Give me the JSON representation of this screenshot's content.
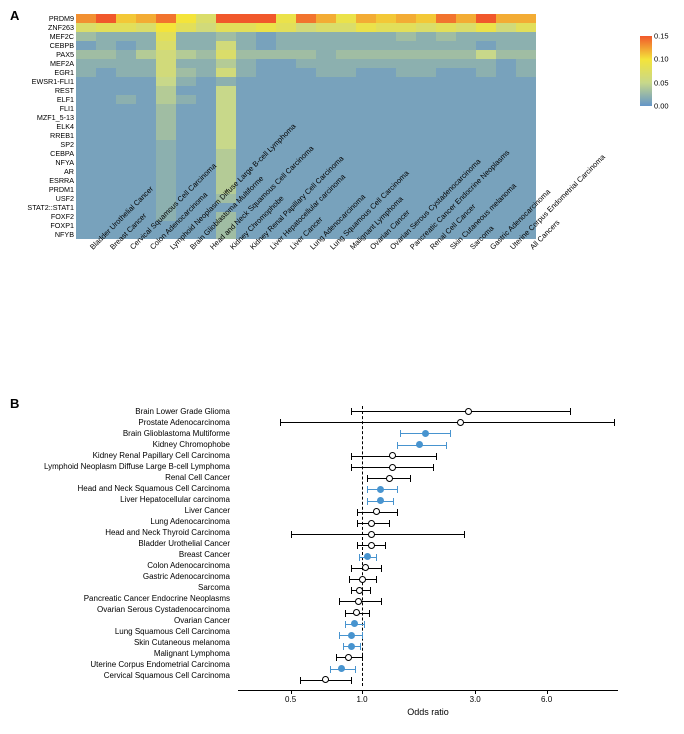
{
  "panel_a": {
    "label": "A",
    "type": "heatmap",
    "background_color": "#ffffff",
    "cell_size": {
      "w": 20,
      "h": 9
    },
    "color_scale": {
      "stops": [
        {
          "v": 0.0,
          "c": "#6495c8"
        },
        {
          "v": 0.05,
          "c": "#c8d88a"
        },
        {
          "v": 0.1,
          "c": "#f4e43a"
        },
        {
          "v": 0.15,
          "c": "#f1582b"
        }
      ],
      "ticks": [
        0.0,
        0.05,
        0.1,
        0.15
      ]
    },
    "row_labels": [
      "PRDM9",
      "ZNF263",
      "MEF2C",
      "CEBPB",
      "PAX5",
      "MEF2A",
      "EGR1",
      "EWSR1-FLI1",
      "REST",
      "ELF1",
      "FLI1",
      "MZF1_5-13",
      "ELK4",
      "RREB1",
      "SP2",
      "CEBPA",
      "NFYA",
      "AR",
      "ESRRA",
      "PRDM1",
      "USF2",
      "STAT2::STAT1",
      "FOXF2",
      "FOXP1",
      "NFYB"
    ],
    "col_labels": [
      "Bladder Urothelial Cancer",
      "Breast Cancer",
      "Cervical Squamous Cell Carcinoma",
      "Colon Adenocarcinoma",
      "Lymphoid Neoplasm Diffuse Large B-cell Lymphoma",
      "Brain Glioblastoma Multiforme",
      "Head and Neck Squamous Cell Carcinoma",
      "Kidney Chromophobe",
      "Kidney Renal Papillary Cell Carcinoma",
      "Liver Hepatocellular carcinoma",
      "Liver Cancer",
      "Lung Adenocarcinoma",
      "Lung Squamous Cell Carcinoma",
      "Malignant Lymphoma",
      "Ovarian Cancer",
      "Ovarian Serous Cystadenocarcinoma",
      "Pancreatic Cancer Endocrine Neoplasms",
      "Renal Cell Cancer",
      "Skin Cutaneous melanoma",
      "Sarcoma",
      "Gastric Adenocarcinoma",
      "Uterine Corpus Endometrial Carcinoma",
      "All Cancers"
    ],
    "values": [
      [
        0.13,
        0.15,
        0.11,
        0.12,
        0.14,
        0.1,
        0.07,
        0.16,
        0.15,
        0.15,
        0.09,
        0.14,
        0.12,
        0.09,
        0.12,
        0.11,
        0.12,
        0.11,
        0.14,
        0.12,
        0.16,
        0.12,
        0.12
      ],
      [
        0.07,
        0.08,
        0.08,
        0.07,
        0.1,
        0.08,
        0.06,
        0.08,
        0.08,
        0.09,
        0.08,
        0.06,
        0.07,
        0.07,
        0.09,
        0.08,
        0.08,
        0.07,
        0.08,
        0.07,
        0.09,
        0.06,
        0.08
      ],
      [
        0.03,
        0.02,
        0.02,
        0.02,
        0.08,
        0.02,
        0.02,
        0.03,
        0.02,
        0.01,
        0.02,
        0.02,
        0.02,
        0.02,
        0.02,
        0.02,
        0.03,
        0.02,
        0.03,
        0.02,
        0.02,
        0.02,
        0.02
      ],
      [
        0.01,
        0.02,
        0.01,
        0.02,
        0.07,
        0.02,
        0.02,
        0.06,
        0.02,
        0.01,
        0.02,
        0.02,
        0.02,
        0.02,
        0.02,
        0.02,
        0.02,
        0.02,
        0.02,
        0.02,
        0.01,
        0.02,
        0.02
      ],
      [
        0.03,
        0.03,
        0.02,
        0.04,
        0.06,
        0.04,
        0.03,
        0.07,
        0.03,
        0.03,
        0.03,
        0.03,
        0.02,
        0.03,
        0.03,
        0.03,
        0.03,
        0.03,
        0.03,
        0.03,
        0.05,
        0.03,
        0.03
      ],
      [
        0.02,
        0.02,
        0.02,
        0.02,
        0.06,
        0.02,
        0.02,
        0.04,
        0.02,
        0.01,
        0.01,
        0.02,
        0.02,
        0.02,
        0.02,
        0.02,
        0.02,
        0.02,
        0.02,
        0.02,
        0.02,
        0.01,
        0.02
      ],
      [
        0.02,
        0.01,
        0.02,
        0.02,
        0.06,
        0.03,
        0.02,
        0.06,
        0.02,
        0.01,
        0.01,
        0.01,
        0.02,
        0.02,
        0.01,
        0.01,
        0.02,
        0.02,
        0.01,
        0.01,
        0.02,
        0.01,
        0.02
      ],
      [
        0.01,
        0.01,
        0.01,
        0.01,
        0.05,
        0.02,
        0.01,
        0.02,
        0.01,
        0.01,
        0.01,
        0.01,
        0.01,
        0.01,
        0.01,
        0.01,
        0.01,
        0.01,
        0.01,
        0.01,
        0.01,
        0.01,
        0.01
      ],
      [
        0.01,
        0.01,
        0.01,
        0.01,
        0.04,
        0.01,
        0.01,
        0.05,
        0.01,
        0.01,
        0.01,
        0.01,
        0.01,
        0.01,
        0.01,
        0.01,
        0.01,
        0.01,
        0.01,
        0.01,
        0.01,
        0.01,
        0.01
      ],
      [
        0.01,
        0.01,
        0.02,
        0.01,
        0.04,
        0.02,
        0.01,
        0.05,
        0.01,
        0.01,
        0.01,
        0.01,
        0.01,
        0.01,
        0.01,
        0.01,
        0.01,
        0.01,
        0.01,
        0.01,
        0.01,
        0.01,
        0.01
      ],
      [
        0.01,
        0.01,
        0.01,
        0.01,
        0.03,
        0.01,
        0.01,
        0.05,
        0.01,
        0.01,
        0.01,
        0.01,
        0.01,
        0.01,
        0.01,
        0.01,
        0.01,
        0.01,
        0.01,
        0.01,
        0.01,
        0.01,
        0.01
      ],
      [
        0.01,
        0.01,
        0.01,
        0.01,
        0.03,
        0.01,
        0.01,
        0.05,
        0.01,
        0.01,
        0.01,
        0.01,
        0.01,
        0.01,
        0.01,
        0.01,
        0.01,
        0.01,
        0.01,
        0.01,
        0.01,
        0.01,
        0.01
      ],
      [
        0.01,
        0.01,
        0.01,
        0.01,
        0.03,
        0.01,
        0.01,
        0.05,
        0.01,
        0.01,
        0.01,
        0.01,
        0.01,
        0.01,
        0.01,
        0.01,
        0.01,
        0.01,
        0.01,
        0.01,
        0.01,
        0.01,
        0.01
      ],
      [
        0.01,
        0.01,
        0.01,
        0.01,
        0.03,
        0.01,
        0.01,
        0.05,
        0.01,
        0.01,
        0.01,
        0.01,
        0.01,
        0.01,
        0.01,
        0.01,
        0.01,
        0.01,
        0.01,
        0.01,
        0.01,
        0.01,
        0.01
      ],
      [
        0.01,
        0.01,
        0.01,
        0.01,
        0.02,
        0.01,
        0.01,
        0.05,
        0.01,
        0.01,
        0.01,
        0.01,
        0.01,
        0.01,
        0.01,
        0.01,
        0.01,
        0.01,
        0.01,
        0.01,
        0.01,
        0.01,
        0.01
      ],
      [
        0.01,
        0.01,
        0.01,
        0.01,
        0.02,
        0.01,
        0.01,
        0.04,
        0.01,
        0.01,
        0.01,
        0.01,
        0.01,
        0.01,
        0.01,
        0.01,
        0.01,
        0.01,
        0.01,
        0.01,
        0.01,
        0.01,
        0.01
      ],
      [
        0.01,
        0.01,
        0.01,
        0.01,
        0.02,
        0.01,
        0.01,
        0.04,
        0.01,
        0.01,
        0.01,
        0.01,
        0.01,
        0.01,
        0.01,
        0.01,
        0.01,
        0.01,
        0.01,
        0.01,
        0.01,
        0.01,
        0.01
      ],
      [
        0.01,
        0.01,
        0.01,
        0.01,
        0.02,
        0.01,
        0.01,
        0.04,
        0.01,
        0.01,
        0.01,
        0.01,
        0.01,
        0.01,
        0.01,
        0.01,
        0.01,
        0.01,
        0.01,
        0.01,
        0.01,
        0.01,
        0.01
      ],
      [
        0.01,
        0.01,
        0.01,
        0.01,
        0.02,
        0.01,
        0.01,
        0.04,
        0.01,
        0.01,
        0.01,
        0.01,
        0.01,
        0.01,
        0.01,
        0.01,
        0.01,
        0.01,
        0.01,
        0.01,
        0.01,
        0.01,
        0.01
      ],
      [
        0.01,
        0.01,
        0.01,
        0.01,
        0.02,
        0.01,
        0.01,
        0.04,
        0.01,
        0.01,
        0.01,
        0.01,
        0.01,
        0.01,
        0.01,
        0.01,
        0.01,
        0.01,
        0.01,
        0.01,
        0.01,
        0.01,
        0.01
      ],
      [
        0.01,
        0.01,
        0.01,
        0.01,
        0.02,
        0.01,
        0.01,
        0.03,
        0.01,
        0.01,
        0.01,
        0.01,
        0.01,
        0.01,
        0.01,
        0.01,
        0.01,
        0.01,
        0.01,
        0.01,
        0.01,
        0.01,
        0.01
      ],
      [
        0.01,
        0.01,
        0.01,
        0.01,
        0.02,
        0.01,
        0.01,
        0.01,
        0.01,
        0.01,
        0.01,
        0.01,
        0.01,
        0.01,
        0.01,
        0.01,
        0.01,
        0.01,
        0.01,
        0.01,
        0.01,
        0.01,
        0.01
      ],
      [
        0.01,
        0.01,
        0.01,
        0.01,
        0.02,
        0.01,
        0.01,
        0.03,
        0.01,
        0.01,
        0.01,
        0.01,
        0.01,
        0.01,
        0.01,
        0.01,
        0.01,
        0.01,
        0.01,
        0.01,
        0.01,
        0.01,
        0.01
      ],
      [
        0.01,
        0.01,
        0.01,
        0.01,
        0.01,
        0.01,
        0.01,
        0.03,
        0.01,
        0.01,
        0.01,
        0.01,
        0.01,
        0.01,
        0.01,
        0.01,
        0.01,
        0.01,
        0.01,
        0.01,
        0.01,
        0.01,
        0.01
      ],
      [
        0.01,
        0.01,
        0.01,
        0.01,
        0.01,
        0.01,
        0.01,
        0.03,
        0.01,
        0.01,
        0.01,
        0.01,
        0.01,
        0.01,
        0.01,
        0.01,
        0.01,
        0.01,
        0.01,
        0.01,
        0.01,
        0.01,
        0.01
      ]
    ]
  },
  "panel_b": {
    "label": "B",
    "type": "forest",
    "x_scale": "log",
    "x_axis_title": "Odds ratio",
    "x_ticks": [
      0.5,
      1.0,
      3.0,
      6.0
    ],
    "x_range": [
      0.3,
      12.0
    ],
    "ref_line": 1.0,
    "sig_color": "#4894cf",
    "ns_color": "#000000",
    "rows": [
      {
        "label": "Brain Lower Grade Glioma",
        "or": 2.8,
        "lo": 0.9,
        "hi": 7.5,
        "sig": false
      },
      {
        "label": "Prostate Adenocarcinoma",
        "or": 2.6,
        "lo": 0.45,
        "hi": 11.5,
        "sig": false
      },
      {
        "label": "Brain Glioblastoma Multiforme",
        "or": 1.85,
        "lo": 1.45,
        "hi": 2.35,
        "sig": true
      },
      {
        "label": "Kidney Chromophobe",
        "or": 1.75,
        "lo": 1.4,
        "hi": 2.25,
        "sig": true
      },
      {
        "label": "Kidney Renal Papillary Cell Carcinoma",
        "or": 1.35,
        "lo": 0.9,
        "hi": 2.05,
        "sig": false
      },
      {
        "label": "Lymphoid Neoplasm Diffuse Large B-cell Lymphoma",
        "or": 1.35,
        "lo": 0.9,
        "hi": 2.0,
        "sig": false
      },
      {
        "label": "Renal Cell Cancer",
        "or": 1.3,
        "lo": 1.05,
        "hi": 1.6,
        "sig": false
      },
      {
        "label": "Head and Neck Squamous Cell Carcinoma",
        "or": 1.2,
        "lo": 1.05,
        "hi": 1.4,
        "sig": true
      },
      {
        "label": "Liver Hepatocellular carcinoma",
        "or": 1.2,
        "lo": 1.05,
        "hi": 1.35,
        "sig": true
      },
      {
        "label": "Liver Cancer",
        "or": 1.15,
        "lo": 0.95,
        "hi": 1.4,
        "sig": false
      },
      {
        "label": "Lung Adenocarcinoma",
        "or": 1.1,
        "lo": 0.95,
        "hi": 1.3,
        "sig": false
      },
      {
        "label": "Head and Neck Thyroid Carcinoma",
        "or": 1.1,
        "lo": 0.5,
        "hi": 2.7,
        "sig": false
      },
      {
        "label": "Bladder Urothelial Cancer",
        "or": 1.1,
        "lo": 0.95,
        "hi": 1.25,
        "sig": false
      },
      {
        "label": "Breast Cancer",
        "or": 1.05,
        "lo": 0.97,
        "hi": 1.14,
        "sig": true
      },
      {
        "label": "Colon Adenocarcinoma",
        "or": 1.03,
        "lo": 0.9,
        "hi": 1.2,
        "sig": false
      },
      {
        "label": "Gastric Adenocarcinoma",
        "or": 1.0,
        "lo": 0.88,
        "hi": 1.15,
        "sig": false
      },
      {
        "label": "Sarcoma",
        "or": 0.98,
        "lo": 0.9,
        "hi": 1.08,
        "sig": false
      },
      {
        "label": "Pancreatic Cancer Endocrine Neoplasms",
        "or": 0.97,
        "lo": 0.8,
        "hi": 1.2,
        "sig": false
      },
      {
        "label": "Ovarian Serous Cystadenocarcinoma",
        "or": 0.95,
        "lo": 0.85,
        "hi": 1.07,
        "sig": false
      },
      {
        "label": "Ovarian Cancer",
        "or": 0.93,
        "lo": 0.85,
        "hi": 1.02,
        "sig": true
      },
      {
        "label": "Lung Squamous Cell Carcinoma",
        "or": 0.9,
        "lo": 0.8,
        "hi": 1.0,
        "sig": true
      },
      {
        "label": "Skin Cutaneous melanoma",
        "or": 0.9,
        "lo": 0.83,
        "hi": 0.98,
        "sig": true
      },
      {
        "label": "Malignant Lymphoma",
        "or": 0.88,
        "lo": 0.78,
        "hi": 1.0,
        "sig": false
      },
      {
        "label": "Uterine Corpus Endometrial Carcinoma",
        "or": 0.82,
        "lo": 0.73,
        "hi": 0.93,
        "sig": true
      },
      {
        "label": "Cervical Squamous Cell Carcinoma",
        "or": 0.7,
        "lo": 0.55,
        "hi": 0.9,
        "sig": false
      }
    ]
  }
}
